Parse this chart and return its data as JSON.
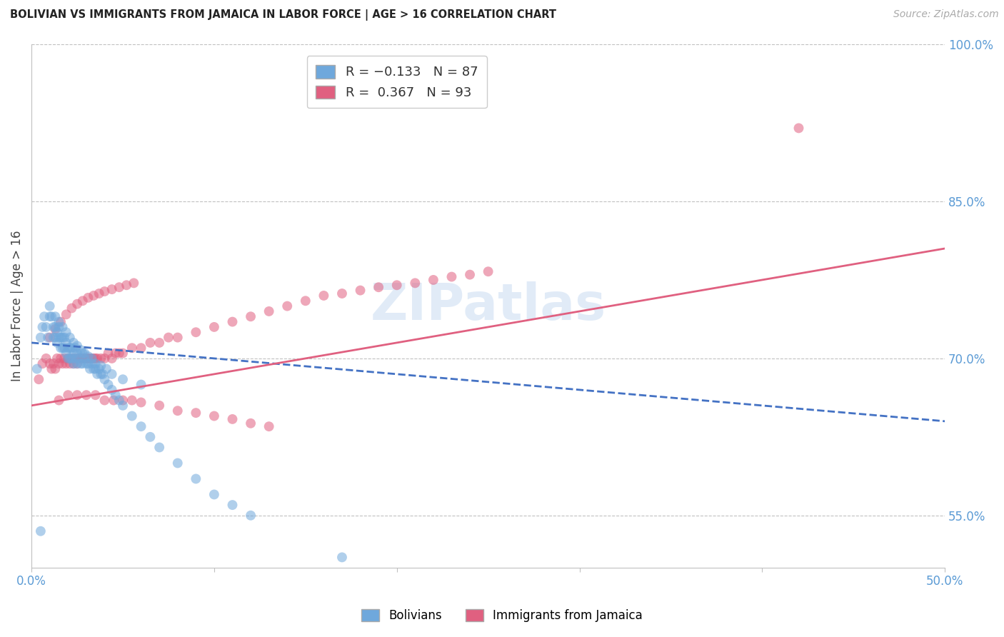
{
  "title": "BOLIVIAN VS IMMIGRANTS FROM JAMAICA IN LABOR FORCE | AGE > 16 CORRELATION CHART",
  "source": "Source: ZipAtlas.com",
  "ylabel": "In Labor Force | Age > 16",
  "xmin": 0.0,
  "xmax": 0.5,
  "ymin": 0.5,
  "ymax": 1.0,
  "right_ytick_positions": [
    0.55,
    0.7,
    0.85,
    1.0
  ],
  "right_ytick_labels": [
    "55.0%",
    "70.0%",
    "85.0%",
    "100.0%"
  ],
  "xtick_positions": [
    0.0,
    0.1,
    0.2,
    0.3,
    0.4,
    0.5
  ],
  "xtick_labels": [
    "0.0%",
    "",
    "",
    "",
    "",
    "50.0%"
  ],
  "blue_color": "#6fa8dc",
  "pink_color": "#e06080",
  "blue_line_color": "#4472c4",
  "pink_line_color": "#e06080",
  "axis_label_color": "#5b9bd5",
  "grid_color": "#c0c0c0",
  "watermark": "ZIPatlas",
  "blue_line_x0": 0.0,
  "blue_line_x1": 0.5,
  "blue_line_y0": 0.715,
  "blue_line_y1": 0.64,
  "pink_line_x0": 0.0,
  "pink_line_x1": 0.5,
  "pink_line_y0": 0.655,
  "pink_line_y1": 0.805,
  "blue_scatter_x": [
    0.003,
    0.005,
    0.006,
    0.007,
    0.008,
    0.009,
    0.01,
    0.01,
    0.011,
    0.012,
    0.012,
    0.013,
    0.013,
    0.014,
    0.014,
    0.015,
    0.015,
    0.016,
    0.016,
    0.017,
    0.017,
    0.018,
    0.018,
    0.019,
    0.019,
    0.02,
    0.02,
    0.021,
    0.021,
    0.022,
    0.022,
    0.023,
    0.023,
    0.024,
    0.024,
    0.025,
    0.025,
    0.026,
    0.027,
    0.028,
    0.028,
    0.029,
    0.03,
    0.031,
    0.032,
    0.033,
    0.034,
    0.035,
    0.036,
    0.037,
    0.038,
    0.039,
    0.04,
    0.042,
    0.044,
    0.046,
    0.048,
    0.05,
    0.055,
    0.06,
    0.065,
    0.07,
    0.08,
    0.09,
    0.1,
    0.11,
    0.12,
    0.013,
    0.015,
    0.017,
    0.019,
    0.021,
    0.023,
    0.025,
    0.027,
    0.029,
    0.031,
    0.033,
    0.035,
    0.038,
    0.041,
    0.044,
    0.05,
    0.06,
    0.005,
    0.17
  ],
  "blue_scatter_y": [
    0.69,
    0.72,
    0.73,
    0.74,
    0.73,
    0.72,
    0.74,
    0.75,
    0.74,
    0.73,
    0.72,
    0.73,
    0.72,
    0.725,
    0.715,
    0.73,
    0.72,
    0.72,
    0.71,
    0.72,
    0.71,
    0.72,
    0.71,
    0.715,
    0.705,
    0.71,
    0.7,
    0.71,
    0.7,
    0.71,
    0.7,
    0.705,
    0.695,
    0.71,
    0.7,
    0.705,
    0.695,
    0.7,
    0.695,
    0.705,
    0.695,
    0.7,
    0.695,
    0.695,
    0.69,
    0.695,
    0.69,
    0.69,
    0.685,
    0.69,
    0.685,
    0.685,
    0.68,
    0.675,
    0.67,
    0.665,
    0.66,
    0.655,
    0.645,
    0.635,
    0.625,
    0.615,
    0.6,
    0.585,
    0.57,
    0.56,
    0.55,
    0.74,
    0.735,
    0.73,
    0.725,
    0.72,
    0.715,
    0.712,
    0.708,
    0.705,
    0.702,
    0.7,
    0.695,
    0.693,
    0.69,
    0.685,
    0.68,
    0.675,
    0.535,
    0.51
  ],
  "pink_scatter_x": [
    0.004,
    0.006,
    0.008,
    0.01,
    0.011,
    0.012,
    0.013,
    0.014,
    0.015,
    0.016,
    0.017,
    0.018,
    0.019,
    0.02,
    0.021,
    0.022,
    0.023,
    0.024,
    0.025,
    0.026,
    0.027,
    0.028,
    0.029,
    0.03,
    0.031,
    0.032,
    0.033,
    0.034,
    0.035,
    0.036,
    0.038,
    0.04,
    0.042,
    0.044,
    0.046,
    0.048,
    0.05,
    0.055,
    0.06,
    0.065,
    0.07,
    0.075,
    0.08,
    0.09,
    0.1,
    0.11,
    0.12,
    0.13,
    0.14,
    0.15,
    0.16,
    0.17,
    0.18,
    0.19,
    0.2,
    0.21,
    0.22,
    0.23,
    0.24,
    0.25,
    0.015,
    0.02,
    0.025,
    0.03,
    0.035,
    0.04,
    0.045,
    0.05,
    0.055,
    0.06,
    0.07,
    0.08,
    0.09,
    0.1,
    0.11,
    0.12,
    0.13,
    0.01,
    0.013,
    0.016,
    0.019,
    0.022,
    0.025,
    0.028,
    0.031,
    0.034,
    0.037,
    0.04,
    0.044,
    0.048,
    0.052,
    0.056,
    0.42
  ],
  "pink_scatter_y": [
    0.68,
    0.695,
    0.7,
    0.695,
    0.69,
    0.695,
    0.69,
    0.7,
    0.695,
    0.7,
    0.695,
    0.7,
    0.695,
    0.7,
    0.695,
    0.7,
    0.695,
    0.7,
    0.695,
    0.7,
    0.7,
    0.7,
    0.7,
    0.7,
    0.7,
    0.7,
    0.7,
    0.7,
    0.7,
    0.7,
    0.7,
    0.7,
    0.705,
    0.7,
    0.705,
    0.705,
    0.705,
    0.71,
    0.71,
    0.715,
    0.715,
    0.72,
    0.72,
    0.725,
    0.73,
    0.735,
    0.74,
    0.745,
    0.75,
    0.755,
    0.76,
    0.762,
    0.765,
    0.768,
    0.77,
    0.772,
    0.775,
    0.778,
    0.78,
    0.783,
    0.66,
    0.665,
    0.665,
    0.665,
    0.665,
    0.66,
    0.66,
    0.66,
    0.66,
    0.658,
    0.655,
    0.65,
    0.648,
    0.645,
    0.642,
    0.638,
    0.635,
    0.72,
    0.728,
    0.735,
    0.742,
    0.748,
    0.752,
    0.755,
    0.758,
    0.76,
    0.762,
    0.764,
    0.766,
    0.768,
    0.77,
    0.772,
    0.92
  ]
}
